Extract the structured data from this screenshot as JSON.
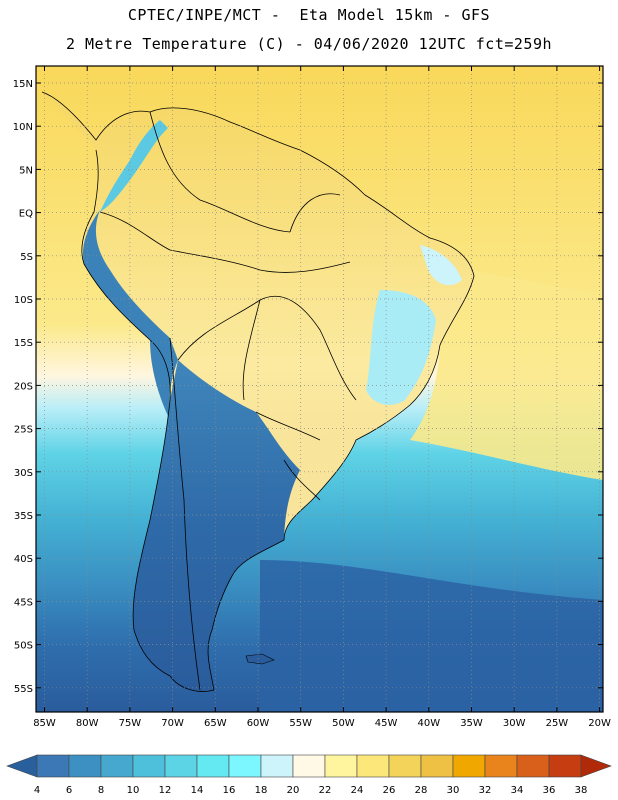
{
  "title_line1": "CPTEC/INPE/MCT -  Eta Model 15km - GFS",
  "title_line2": "2 Metre Temperature (C) - 04/06/2020 12UTC fct=259h",
  "lat_labels": [
    "15N",
    "10N",
    "5N",
    "EQ",
    "5S",
    "10S",
    "15S",
    "20S",
    "25S",
    "30S",
    "35S",
    "40S",
    "45S",
    "50S",
    "55S"
  ],
  "lon_labels": [
    "85W",
    "80W",
    "75W",
    "70W",
    "65W",
    "60W",
    "55W",
    "50W",
    "45W",
    "40W",
    "35W",
    "30W",
    "25W",
    "20W"
  ],
  "colorbar": {
    "ticks": [
      "4",
      "6",
      "8",
      "10",
      "12",
      "14",
      "16",
      "18",
      "20",
      "22",
      "24",
      "26",
      "28",
      "30",
      "32",
      "34",
      "36",
      "38"
    ],
    "colors": [
      "#2a5f9e",
      "#3c78b5",
      "#3d91c2",
      "#46a8cf",
      "#4fc0dc",
      "#5cd4e6",
      "#64e8f2",
      "#7cf6ff",
      "#cdf4fb",
      "#fff9e6",
      "#fff59e",
      "#fbe77a",
      "#f4d35a",
      "#eec044",
      "#f0a800",
      "#e9841c",
      "#d9601b",
      "#c63d12",
      "#b02a0a"
    ],
    "color_count": 19,
    "range": [
      4,
      38
    ]
  },
  "map": {
    "variable": "2 Metre Temperature (C)",
    "ocean_north_color": "#f8d95c",
    "ocean_south_color": "#2b63a4",
    "land_color": "#f8e49a",
    "andes_color": "#3b82b8"
  }
}
